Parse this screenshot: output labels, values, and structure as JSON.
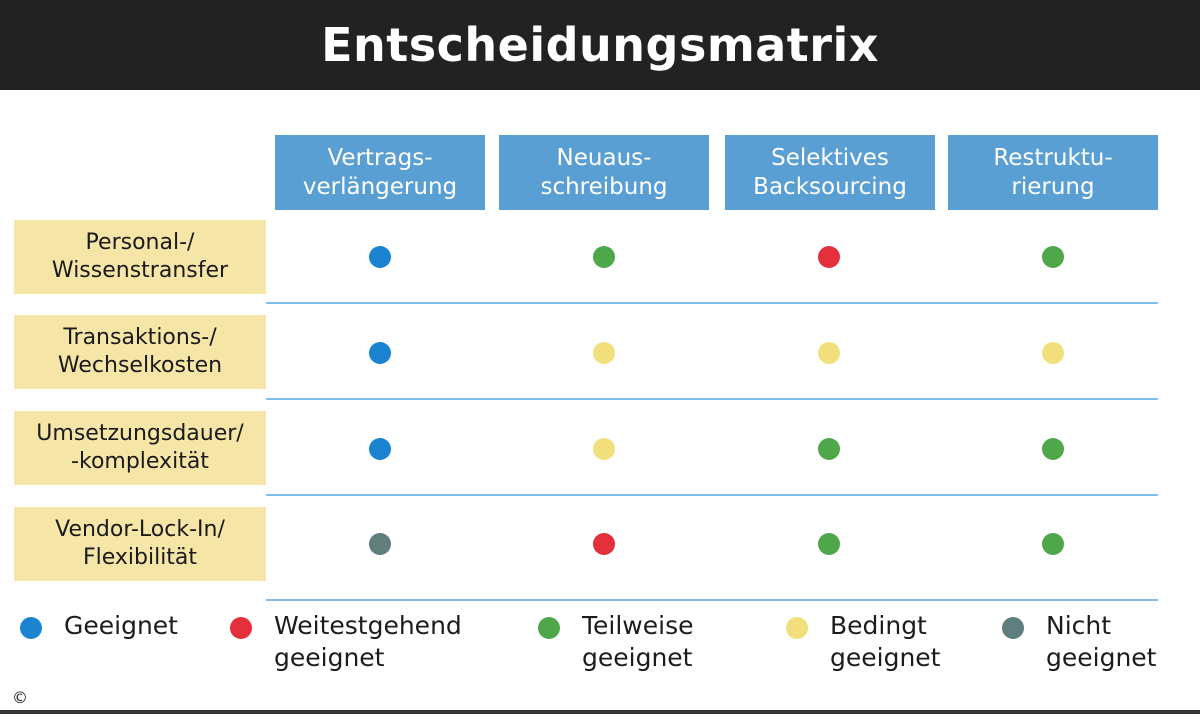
{
  "title": "Entscheidungsmatrix",
  "columns": [
    {
      "label": "Vertrags-\nverlängerung"
    },
    {
      "label": "Neuaus-\nschreibung"
    },
    {
      "label": "Selektives\nBacksourcing"
    },
    {
      "label": "Restruktu-\nrierung"
    }
  ],
  "rows": [
    {
      "label": "Personal-/\nWissenstransfer",
      "ratings": [
        "geeignet",
        "teilweise",
        "weitestgehend",
        "teilweise"
      ]
    },
    {
      "label": "Transaktions-/\nWechselkosten",
      "ratings": [
        "geeignet",
        "bedingt",
        "bedingt",
        "bedingt"
      ]
    },
    {
      "label": "Umsetzungsdauer/\n-komplexität",
      "ratings": [
        "geeignet",
        "bedingt",
        "teilweise",
        "teilweise"
      ]
    },
    {
      "label": "Vendor-Lock-In/\nFlexibilität",
      "ratings": [
        "nicht",
        "weitestgehend",
        "teilweise",
        "teilweise"
      ]
    }
  ],
  "legend": [
    {
      "key": "geeignet",
      "label": "Geeignet",
      "color": "#1a84d0"
    },
    {
      "key": "weitestgehend",
      "label": "Weitestgehend\ngeeignet",
      "color": "#e3303b"
    },
    {
      "key": "teilweise",
      "label": "Teilweise\ngeeignet",
      "color": "#4ea84a"
    },
    {
      "key": "bedingt",
      "label": "Bedingt\ngeeignet",
      "color": "#f0df7a"
    },
    {
      "key": "nicht",
      "label": "Nicht\ngeeignet",
      "color": "#5f7f7f"
    }
  ],
  "copyright": "©"
}
